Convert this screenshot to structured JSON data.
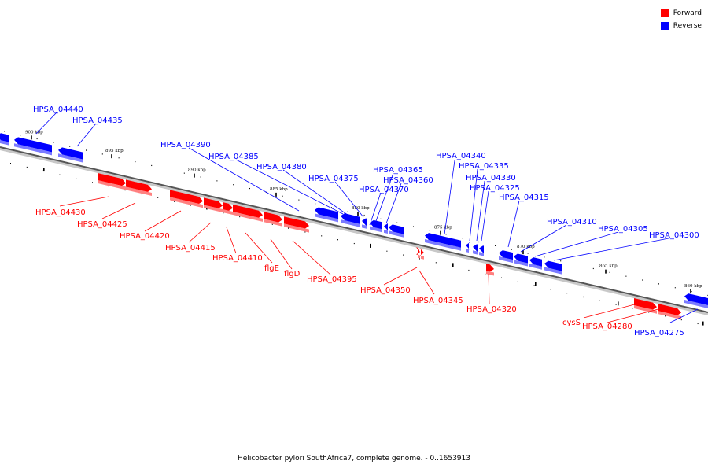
{
  "legend": {
    "forward_label": "Forward",
    "reverse_label": "Reverse",
    "forward_color": "#ff0000",
    "reverse_color": "#0000ff"
  },
  "caption": "Helicobacter pylori SouthAfrica7, complete genome. - 0..1653913",
  "scale_labels": [
    "900 kbp",
    "895 kbp",
    "890 kbp",
    "885 kbp",
    "880 kbp",
    "875 kbp",
    "870 kbp",
    "865 kbp",
    "860 kbp"
  ],
  "genes": {
    "forward": [
      "HPSA_04430",
      "HPSA_04425",
      "HPSA_04420",
      "HPSA_04415",
      "HPSA_04410",
      "flgE",
      "flgD",
      "HPSA_04395",
      "HPSA_04350",
      "HPSA_04345",
      "HPSA_04320",
      "cysS",
      "HPSA_04280"
    ],
    "reverse": [
      "HPSA_04440",
      "HPSA_04435",
      "HPSA_04390",
      "HPSA_04385",
      "HPSA_04380",
      "HPSA_04375",
      "HPSA_04365",
      "HPSA_04360",
      "HPSA_04370",
      "HPSA_04340",
      "HPSA_04335",
      "HPSA_04330",
      "HPSA_04325",
      "HPSA_04315",
      "HPSA_04310",
      "HPSA_04305",
      "HPSA_04300",
      "HPSA_04275"
    ]
  }
}
